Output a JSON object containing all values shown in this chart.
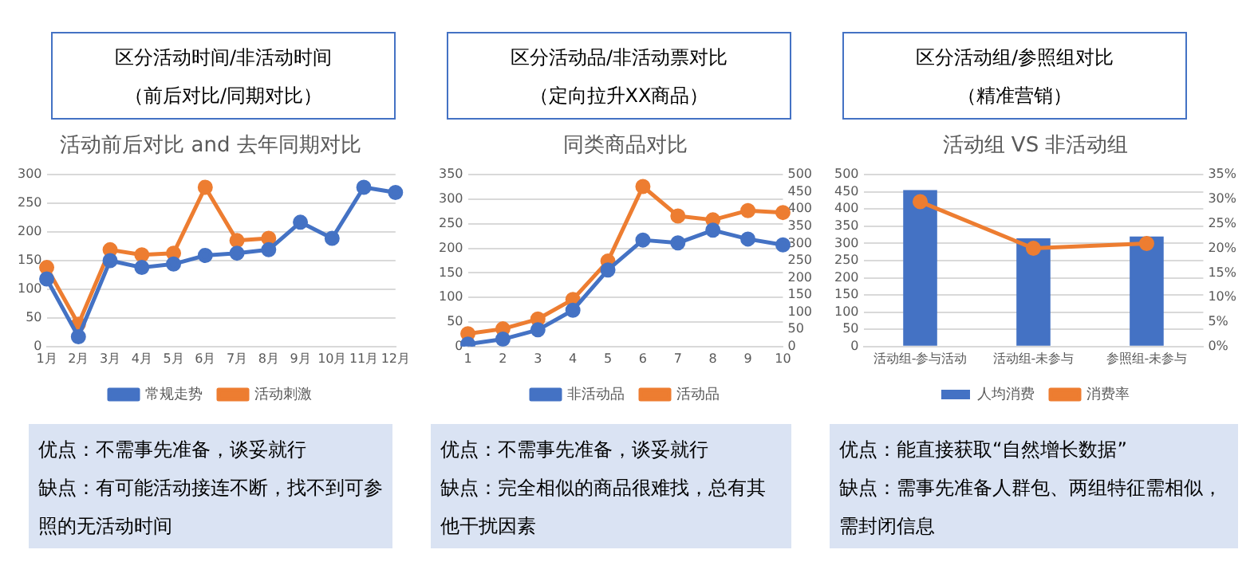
{
  "chart_data": [
    {
      "type": "line",
      "title": "活动前后对比 and 去年同期对比",
      "categories": [
        "1月",
        "2月",
        "3月",
        "4月",
        "5月",
        "6月",
        "7月",
        "8月",
        "9月",
        "10月",
        "11月",
        "12月"
      ],
      "series": [
        {
          "name": "常规走势",
          "color": "#4472c4",
          "values": [
            118,
            17,
            150,
            138,
            144,
            159,
            163,
            169,
            217,
            189,
            278,
            269
          ]
        },
        {
          "name": "活动刺激",
          "color": "#ed7d31",
          "values": [
            138,
            39,
            169,
            160,
            163,
            278,
            185,
            189,
            null,
            null,
            null,
            null
          ]
        }
      ],
      "ylim": [
        0,
        300
      ],
      "yticks": [
        0,
        50,
        100,
        150,
        200,
        250,
        300
      ],
      "grid": "y",
      "legend": "bottom",
      "marker": "circle",
      "annotations": [
        "区分活动时间/非活动时间",
        "（前后对比/同期对比）",
        "优点：不需事先准备，谈妥就行",
        "缺点：有可能活动接连不断，找不到可参照的无活动时间"
      ]
    },
    {
      "type": "line",
      "title": "同类商品对比",
      "categories": [
        "1",
        "2",
        "3",
        "4",
        "5",
        "6",
        "7",
        "8",
        "9",
        "10"
      ],
      "series": [
        {
          "name": "非活动品",
          "color": "#4472c4",
          "values": [
            5,
            15,
            34,
            74,
            156,
            217,
            211,
            237,
            219,
            207
          ]
        },
        {
          "name": "活动品",
          "color": "#ed7d31",
          "values": [
            26,
            36,
            56,
            96,
            174,
            326,
            266,
            258,
            277,
            273
          ]
        }
      ],
      "ylim": [
        0,
        350
      ],
      "yticks": [
        0,
        50,
        100,
        150,
        200,
        250,
        300,
        350
      ],
      "y2lim": [
        0,
        500
      ],
      "y2ticks": [
        0,
        50,
        100,
        150,
        200,
        250,
        300,
        350,
        400,
        450,
        500
      ],
      "grid": "y",
      "legend": "bottom",
      "marker": "circle",
      "annotations": [
        "区分活动品/非活动票对比",
        "（定向拉升XX商品）",
        "优点：不需事先准备，谈妥就行",
        "缺点：完全相似的商品很难找，总有其他干扰因素"
      ]
    },
    {
      "type": "bar",
      "title": "活动组 VS 非活动组",
      "categories": [
        "活动组-参与活动",
        "活动组-未参与",
        "参照组-未参与"
      ],
      "series": [
        {
          "name": "人均消费",
          "color": "#4472c4",
          "values": [
            455,
            315,
            320
          ]
        },
        {
          "name": "消费率",
          "type": "line",
          "axis": "y2",
          "color": "#ed7d31",
          "values": [
            29.5,
            20,
            21
          ]
        }
      ],
      "ylim": [
        0,
        500
      ],
      "yticks": [
        0,
        50,
        100,
        150,
        200,
        250,
        300,
        350,
        400,
        450,
        500
      ],
      "y2lim": [
        0,
        35
      ],
      "y2ticks": [
        {
          "value": 0,
          "label": "0%"
        },
        {
          "value": 5,
          "label": "5%"
        },
        {
          "value": 10,
          "label": "10%"
        },
        {
          "value": 15,
          "label": "15%"
        },
        {
          "value": 20,
          "label": "20%"
        },
        {
          "value": 25,
          "label": "25%"
        },
        {
          "value": 30,
          "label": "30%"
        },
        {
          "value": 35,
          "label": "35%"
        }
      ],
      "grid": "y",
      "legend": "bottom",
      "marker": "circle",
      "annotations": [
        "区分活动组/参照组对比",
        "（精准营销）",
        "优点：能直接获取“自然增长数据”",
        "缺点：需事先准备人群包、两组特征需相似，需封闭信息"
      ]
    }
  ]
}
